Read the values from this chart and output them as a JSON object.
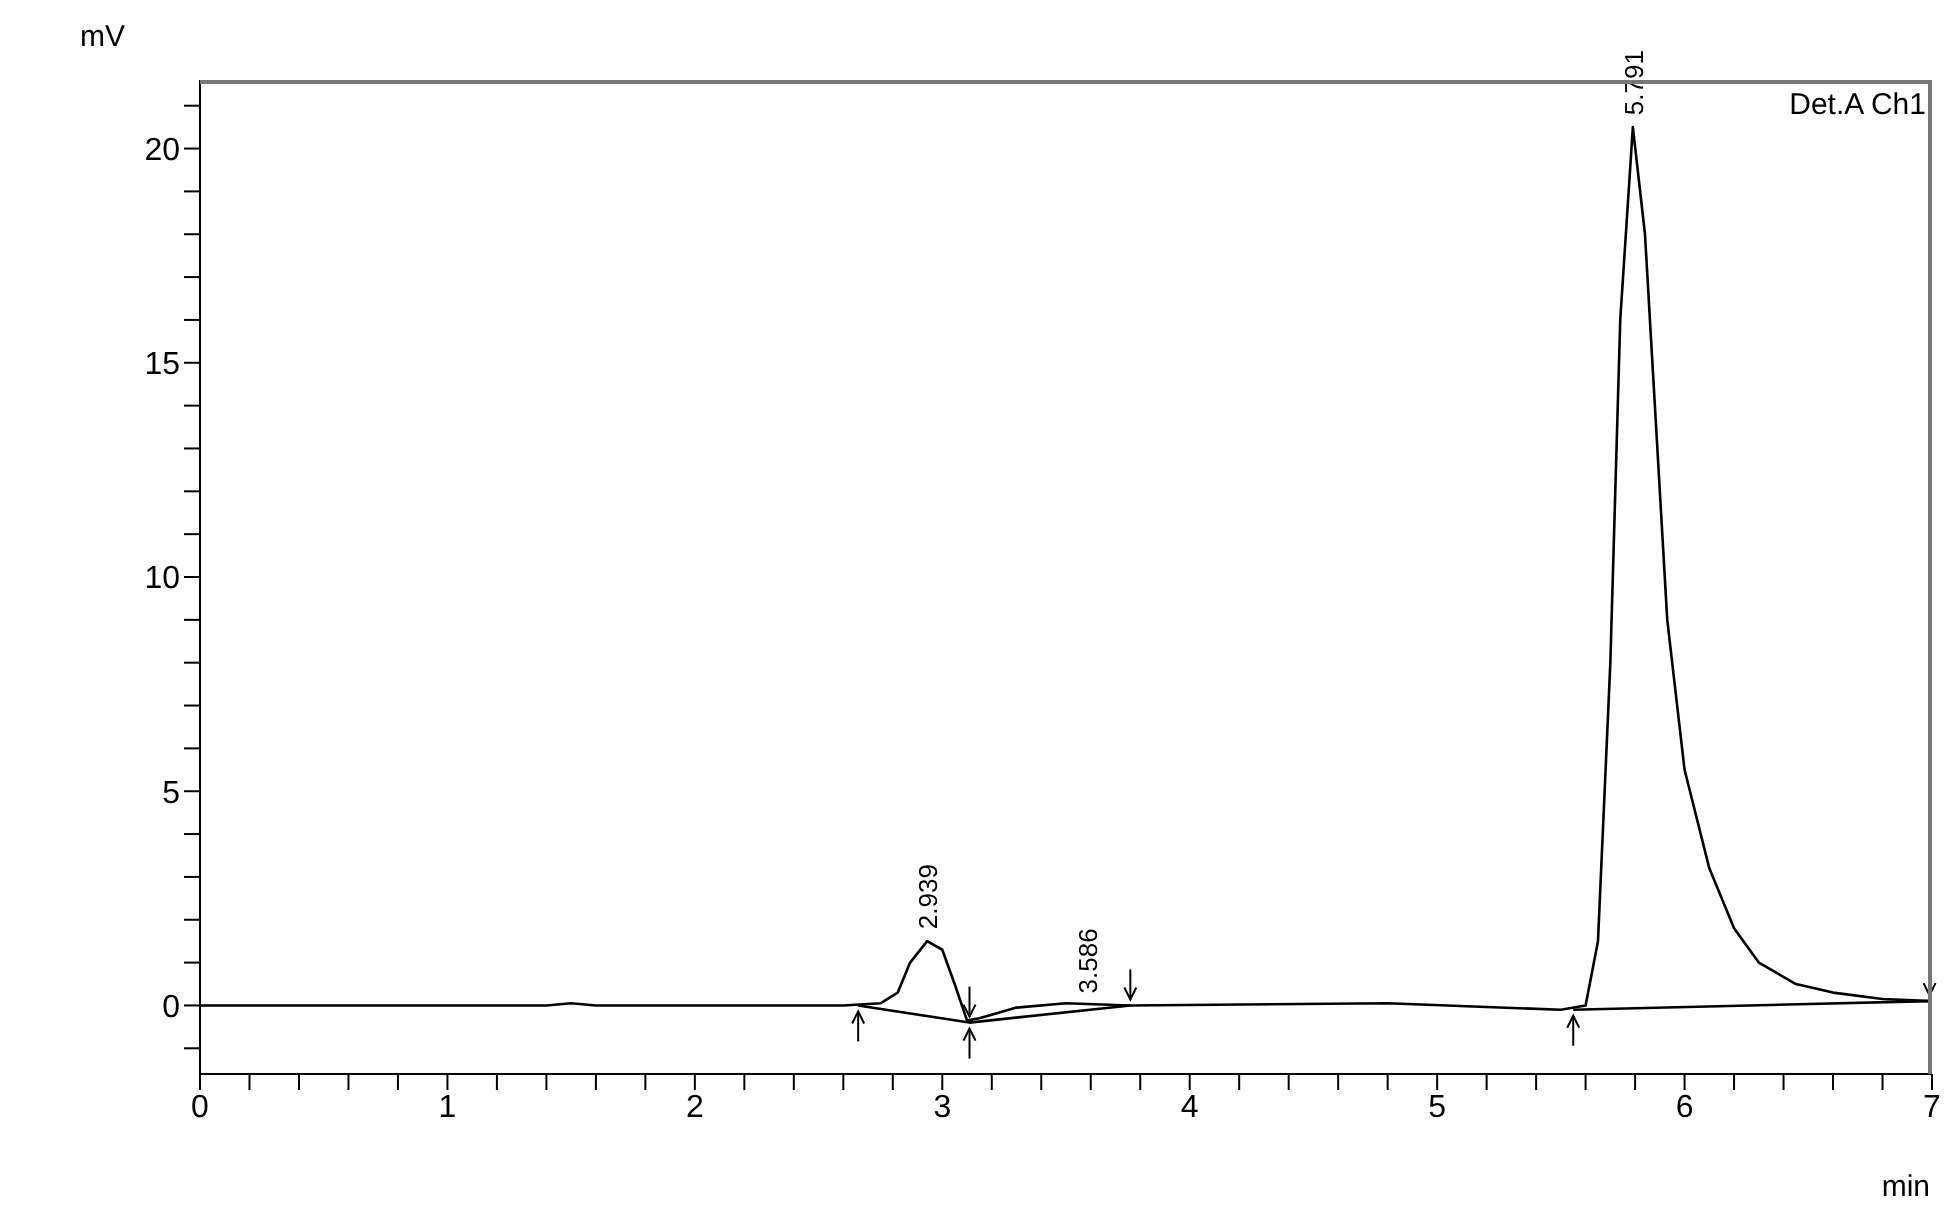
{
  "chart_data": {
    "type": "line",
    "xlabel": "min",
    "ylabel": "mV",
    "xlim": [
      0,
      7
    ],
    "ylim": [
      -1.6,
      21.6
    ],
    "xticks": [
      0,
      {
        "value": 0.2,
        "label": null
      },
      {
        "value": 0.4,
        "label": null
      },
      {
        "value": 0.6,
        "label": null
      },
      {
        "value": 0.8,
        "label": null
      },
      1,
      {
        "value": 1.2,
        "label": null
      },
      {
        "value": 1.4,
        "label": null
      },
      {
        "value": 1.6,
        "label": null
      },
      {
        "value": 1.8,
        "label": null
      },
      2,
      {
        "value": 2.2,
        "label": null
      },
      {
        "value": 2.4,
        "label": null
      },
      {
        "value": 2.6,
        "label": null
      },
      {
        "value": 2.8,
        "label": null
      },
      3,
      {
        "value": 3.2,
        "label": null
      },
      {
        "value": 3.4,
        "label": null
      },
      {
        "value": 3.6,
        "label": null
      },
      {
        "value": 3.8,
        "label": null
      },
      4,
      {
        "value": 4.2,
        "label": null
      },
      {
        "value": 4.4,
        "label": null
      },
      {
        "value": 4.6,
        "label": null
      },
      {
        "value": 4.8,
        "label": null
      },
      5,
      {
        "value": 5.2,
        "label": null
      },
      {
        "value": 5.4,
        "label": null
      },
      {
        "value": 5.6,
        "label": null
      },
      {
        "value": 5.8,
        "label": null
      },
      6,
      {
        "value": 6.2,
        "label": null
      },
      {
        "value": 6.4,
        "label": null
      },
      {
        "value": 6.6,
        "label": null
      },
      {
        "value": 6.8,
        "label": null
      },
      7
    ],
    "yticks": [
      {
        "value": -1,
        "label": null
      },
      0,
      {
        "value": 1,
        "label": null
      },
      {
        "value": 2,
        "label": null
      },
      {
        "value": 3,
        "label": null
      },
      {
        "value": 4,
        "label": null
      },
      5,
      {
        "value": 6,
        "label": null
      },
      {
        "value": 7,
        "label": null
      },
      {
        "value": 8,
        "label": null
      },
      {
        "value": 9,
        "label": null
      },
      10,
      {
        "value": 11,
        "label": null
      },
      {
        "value": 12,
        "label": null
      },
      {
        "value": 13,
        "label": null
      },
      {
        "value": 14,
        "label": null
      },
      15,
      {
        "value": 16,
        "label": null
      },
      {
        "value": 17,
        "label": null
      },
      {
        "value": 18,
        "label": null
      },
      {
        "value": 19,
        "label": null
      },
      20,
      {
        "value": 21,
        "label": null
      }
    ],
    "grid": false,
    "legend": false,
    "marker": "none",
    "line_style": "solid",
    "series": [
      {
        "color": "#000000",
        "x": [
          0,
          1.4,
          1.5,
          1.6,
          2.6,
          2.75,
          2.82,
          2.87,
          2.939,
          3.0,
          3.05,
          3.1,
          3.15,
          3.3,
          3.5,
          3.76,
          4.8,
          5.5,
          5.6,
          5.65,
          5.7,
          5.74,
          5.791,
          5.84,
          5.88,
          5.93,
          6.0,
          6.1,
          6.2,
          6.3,
          6.45,
          6.6,
          6.8,
          7
        ],
        "values": [
          0,
          0,
          0.05,
          0,
          0,
          0.05,
          0.3,
          1.0,
          1.5,
          1.3,
          0.5,
          -0.35,
          -0.3,
          -0.05,
          0.05,
          0,
          0.05,
          -0.1,
          0,
          1.5,
          8,
          16,
          20.5,
          18,
          14,
          9,
          5.5,
          3.2,
          1.8,
          1.0,
          0.5,
          0.3,
          0.15,
          0.1
        ]
      },
      {
        "color": "#000000",
        "x": [
          2.66,
          3.11,
          3.76
        ],
        "values": [
          0,
          -0.4,
          0
        ]
      },
      {
        "color": "#000000",
        "x": [
          5.55,
          6.99
        ],
        "values": [
          -0.1,
          0.1
        ]
      }
    ],
    "annotations": [
      {
        "text": "2.939",
        "x": 2.939,
        "y": 1.5
      },
      {
        "text": "3.586",
        "x": 3.586,
        "y": 0
      },
      {
        "text": "5.791",
        "x": 5.791,
        "y": 20.5
      },
      "Det.A Ch1"
    ]
  }
}
